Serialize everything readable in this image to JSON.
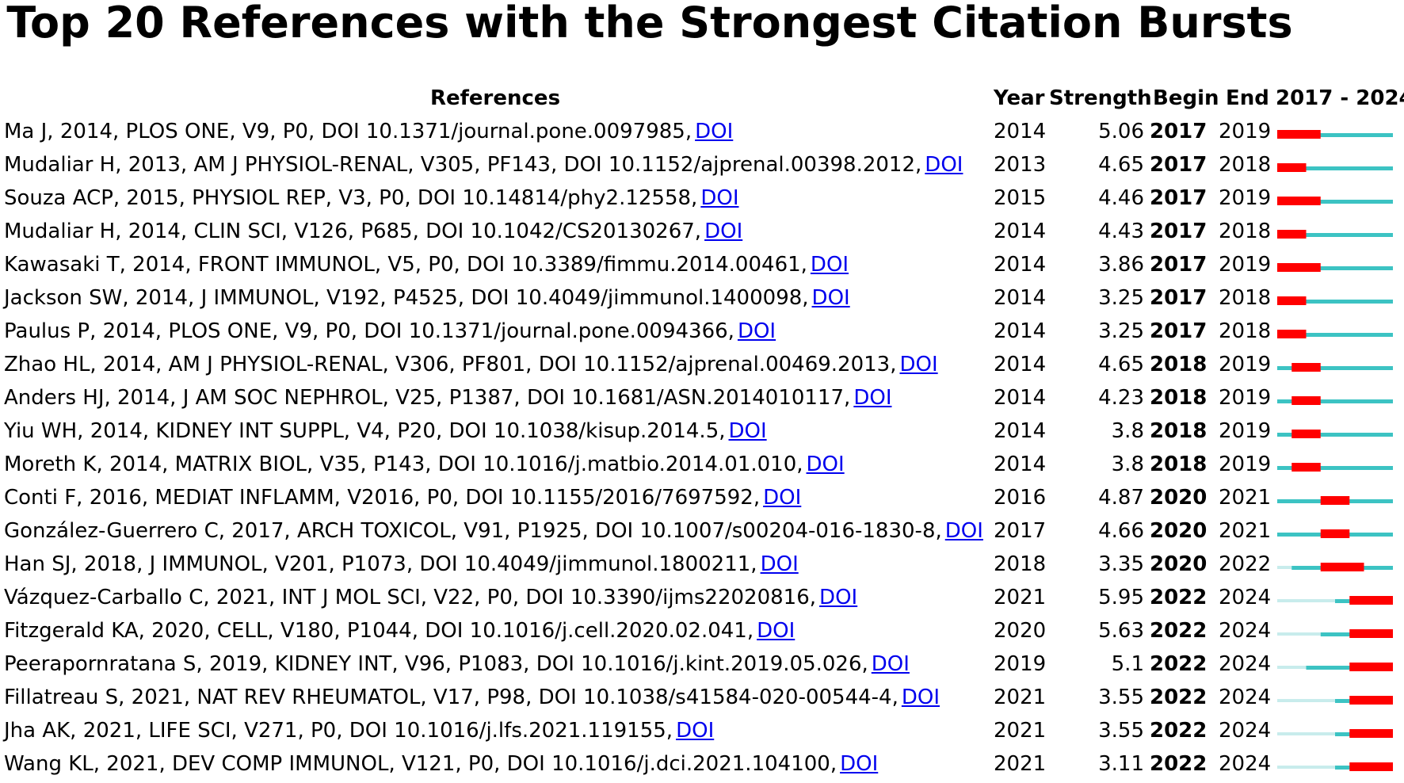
{
  "title": "Top 20 References with the Strongest Citation Bursts",
  "headers": {
    "references": "References",
    "year": "Year",
    "strength": "Strength",
    "begin": "Begin",
    "end": "End",
    "range": "2017 - 2024"
  },
  "doi_label": "DOI",
  "colors": {
    "burst": "#ff0000",
    "active": "#3cc3c3",
    "inactive": "#c8ecec",
    "link": "#0000ee"
  },
  "chart_data": {
    "type": "table",
    "title": "Top 20 References with the Strongest Citation Bursts",
    "timeline_start": 2017,
    "timeline_end": 2024,
    "rows": [
      {
        "reference": "Ma J, 2014, PLOS ONE, V9, P0, DOI 10.1371/journal.pone.0097985,",
        "year": 2014,
        "strength": "5.06",
        "begin": 2017,
        "end": 2019
      },
      {
        "reference": "Mudaliar H, 2013, AM J PHYSIOL-RENAL, V305, PF143, DOI 10.1152/ajprenal.00398.2012,",
        "year": 2013,
        "strength": "4.65",
        "begin": 2017,
        "end": 2018
      },
      {
        "reference": "Souza ACP, 2015, PHYSIOL REP, V3, P0, DOI 10.14814/phy2.12558,",
        "year": 2015,
        "strength": "4.46",
        "begin": 2017,
        "end": 2019
      },
      {
        "reference": "Mudaliar H, 2014, CLIN SCI, V126, P685, DOI 10.1042/CS20130267,",
        "year": 2014,
        "strength": "4.43",
        "begin": 2017,
        "end": 2018
      },
      {
        "reference": "Kawasaki T, 2014, FRONT IMMUNOL, V5, P0, DOI 10.3389/fimmu.2014.00461,",
        "year": 2014,
        "strength": "3.86",
        "begin": 2017,
        "end": 2019
      },
      {
        "reference": "Jackson SW, 2014, J IMMUNOL, V192, P4525, DOI 10.4049/jimmunol.1400098,",
        "year": 2014,
        "strength": "3.25",
        "begin": 2017,
        "end": 2018
      },
      {
        "reference": "Paulus P, 2014, PLOS ONE, V9, P0, DOI 10.1371/journal.pone.0094366,",
        "year": 2014,
        "strength": "3.25",
        "begin": 2017,
        "end": 2018
      },
      {
        "reference": "Zhao HL, 2014, AM J PHYSIOL-RENAL, V306, PF801, DOI 10.1152/ajprenal.00469.2013,",
        "year": 2014,
        "strength": "4.65",
        "begin": 2018,
        "end": 2019
      },
      {
        "reference": "Anders HJ, 2014, J AM SOC NEPHROL, V25, P1387, DOI 10.1681/ASN.2014010117,",
        "year": 2014,
        "strength": "4.23",
        "begin": 2018,
        "end": 2019
      },
      {
        "reference": "Yiu WH, 2014, KIDNEY INT SUPPL, V4, P20, DOI 10.1038/kisup.2014.5,",
        "year": 2014,
        "strength": "3.8",
        "begin": 2018,
        "end": 2019
      },
      {
        "reference": "Moreth K, 2014, MATRIX BIOL, V35, P143, DOI 10.1016/j.matbio.2014.01.010,",
        "year": 2014,
        "strength": "3.8",
        "begin": 2018,
        "end": 2019
      },
      {
        "reference": "Conti F, 2016, MEDIAT INFLAMM, V2016, P0, DOI 10.1155/2016/7697592,",
        "year": 2016,
        "strength": "4.87",
        "begin": 2020,
        "end": 2021
      },
      {
        "reference": "González-Guerrero C, 2017, ARCH TOXICOL, V91, P1925, DOI 10.1007/s00204-016-1830-8,",
        "year": 2017,
        "strength": "4.66",
        "begin": 2020,
        "end": 2021
      },
      {
        "reference": "Han SJ, 2018, J IMMUNOL, V201, P1073, DOI 10.4049/jimmunol.1800211,",
        "year": 2018,
        "strength": "3.35",
        "begin": 2020,
        "end": 2022
      },
      {
        "reference": "Vázquez-Carballo C, 2021, INT J MOL SCI, V22, P0, DOI 10.3390/ijms22020816,",
        "year": 2021,
        "strength": "5.95",
        "begin": 2022,
        "end": 2024
      },
      {
        "reference": "Fitzgerald KA, 2020, CELL, V180, P1044, DOI 10.1016/j.cell.2020.02.041,",
        "year": 2020,
        "strength": "5.63",
        "begin": 2022,
        "end": 2024
      },
      {
        "reference": "Peerapornratana S, 2019, KIDNEY INT, V96, P1083, DOI 10.1016/j.kint.2019.05.026,",
        "year": 2019,
        "strength": "5.1",
        "begin": 2022,
        "end": 2024
      },
      {
        "reference": "Fillatreau S, 2021, NAT REV RHEUMATOL, V17, P98, DOI 10.1038/s41584-020-00544-4,",
        "year": 2021,
        "strength": "3.55",
        "begin": 2022,
        "end": 2024
      },
      {
        "reference": "Jha AK, 2021, LIFE SCI, V271, P0, DOI 10.1016/j.lfs.2021.119155,",
        "year": 2021,
        "strength": "3.55",
        "begin": 2022,
        "end": 2024
      },
      {
        "reference": "Wang KL, 2021, DEV COMP IMMUNOL, V121, P0, DOI 10.1016/j.dci.2021.104100,",
        "year": 2021,
        "strength": "3.11",
        "begin": 2022,
        "end": 2024
      }
    ]
  }
}
